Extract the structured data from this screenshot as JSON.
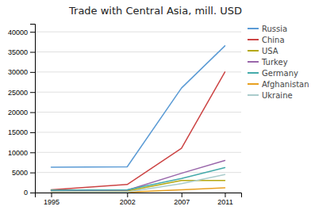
{
  "chart_data": {
    "type": "line",
    "title": "Trade with Central Asia, mill. USD",
    "x": [
      1995,
      2002,
      2007,
      2011
    ],
    "series": [
      {
        "name": "Russia",
        "color": "#5b9bd5",
        "values": [
          6300,
          6400,
          26000,
          36500
        ]
      },
      {
        "name": "China",
        "color": "#cc4444",
        "values": [
          700,
          2000,
          11000,
          30000
        ]
      },
      {
        "name": "USA",
        "color": "#b5a810",
        "values": [
          600,
          400,
          3000,
          3000
        ]
      },
      {
        "name": "Turkey",
        "color": "#9966aa",
        "values": [
          500,
          600,
          4800,
          8000
        ]
      },
      {
        "name": "Germany",
        "color": "#44aaaa",
        "values": [
          600,
          700,
          3500,
          6200
        ]
      },
      {
        "name": "Afghanistan",
        "color": "#e8a020",
        "values": [
          150,
          100,
          700,
          1200
        ]
      },
      {
        "name": "Ukraine",
        "color": "#aacccc",
        "values": [
          200,
          150,
          2200,
          4500
        ]
      }
    ],
    "xlim": [
      1993.5,
      2012.5
    ],
    "xticks": [
      1995,
      2002,
      2007,
      2011
    ],
    "ylim": [
      0,
      42000
    ],
    "yticks": [
      0,
      5000,
      10000,
      15000,
      20000,
      25000,
      30000,
      35000,
      40000
    ],
    "grid": true,
    "legend": "right"
  }
}
